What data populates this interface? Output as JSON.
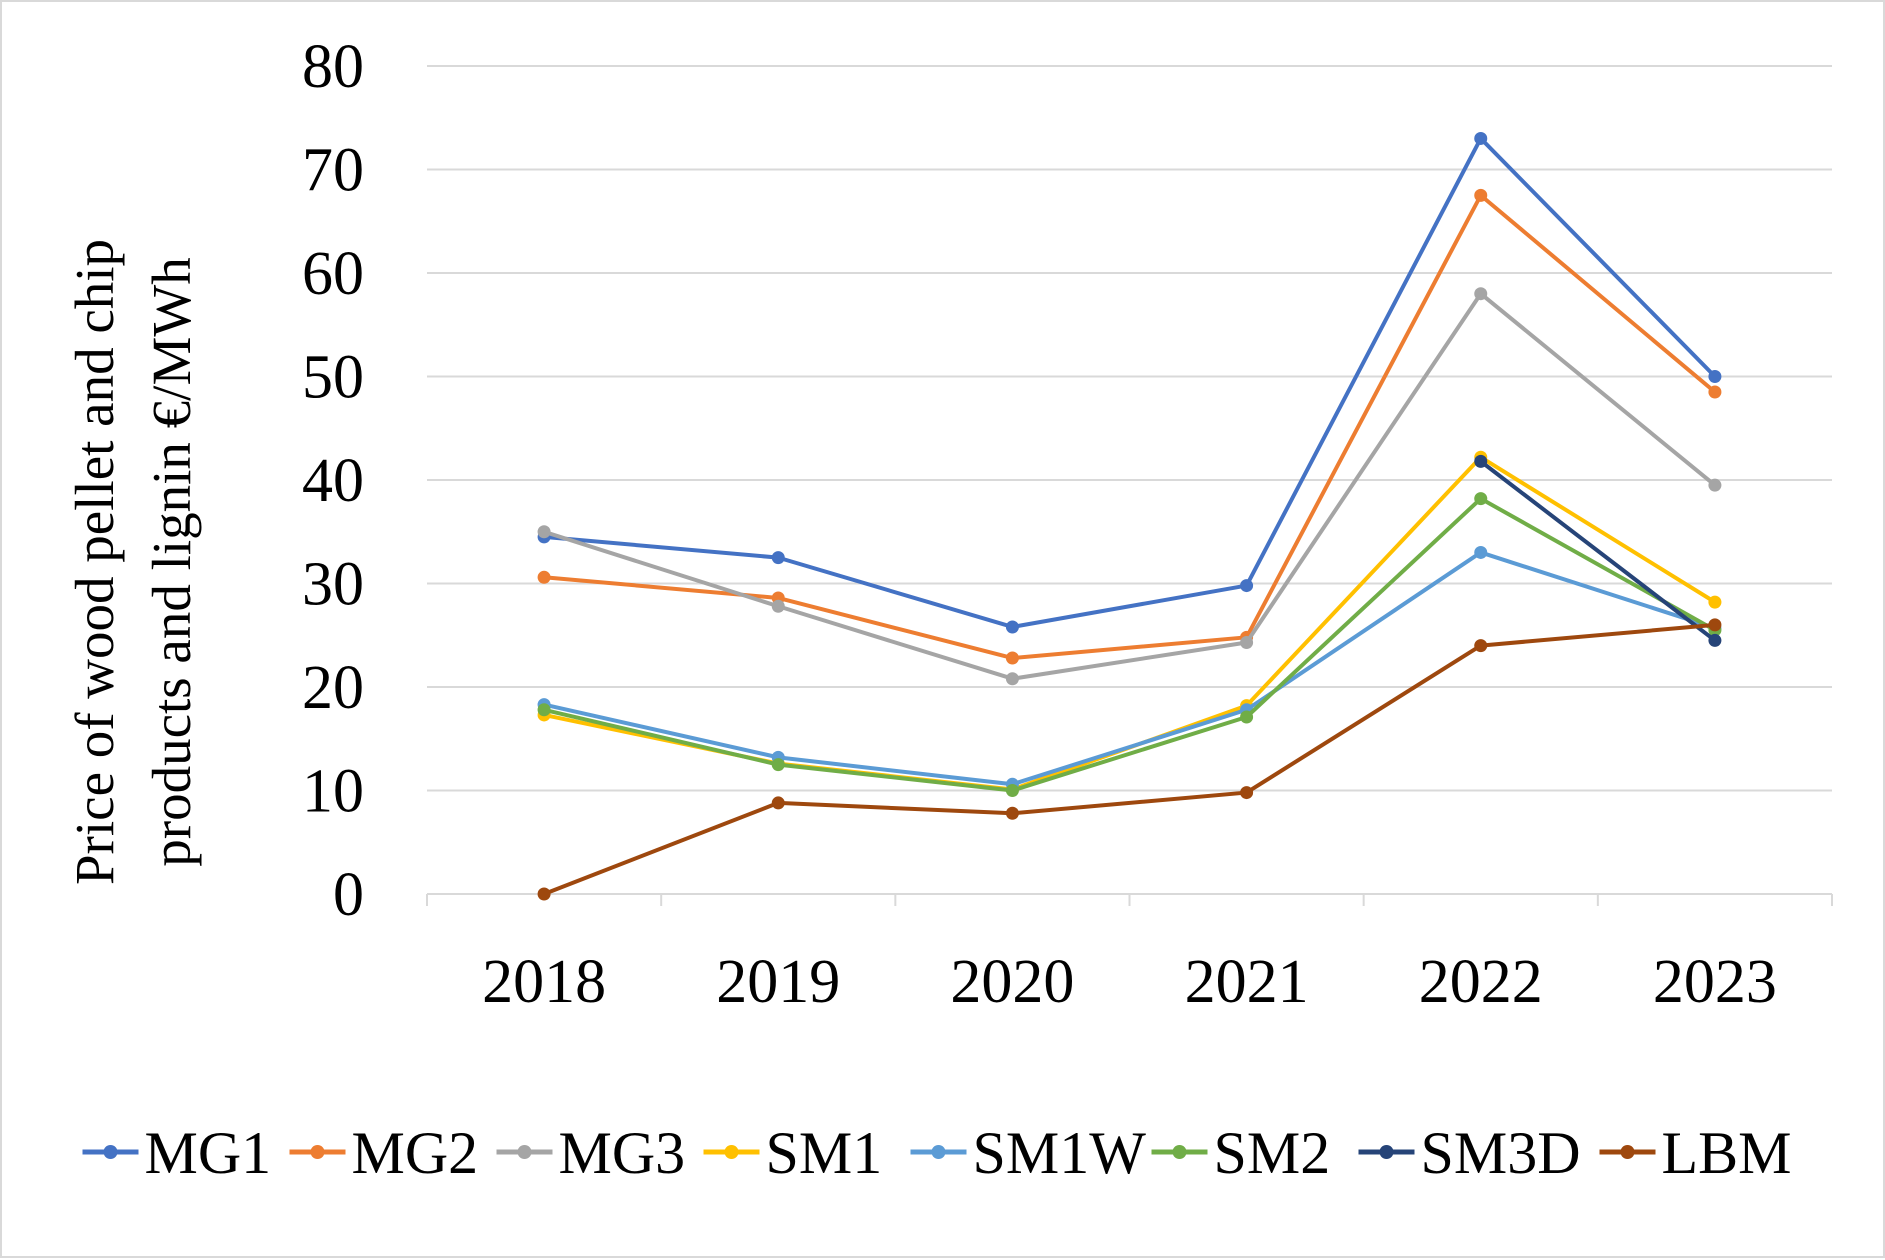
{
  "chart_data": {
    "type": "line",
    "title": "",
    "xlabel": "",
    "ylabel_lines": [
      "Price of wood pellet and chip",
      "products and lignin €/MWh"
    ],
    "categories": [
      "2018",
      "2019",
      "2020",
      "2021",
      "2022",
      "2023"
    ],
    "ylim": [
      0,
      80
    ],
    "yticks": [
      0,
      10,
      20,
      30,
      40,
      50,
      60,
      70,
      80
    ],
    "grid": true,
    "legend_position": "bottom",
    "series": [
      {
        "name": "MG1",
        "color": "#4472C4",
        "values": [
          34.5,
          32.5,
          25.8,
          29.8,
          73.0,
          50.0
        ]
      },
      {
        "name": "MG2",
        "color": "#ED7D31",
        "values": [
          30.6,
          28.6,
          22.8,
          24.8,
          67.5,
          48.5
        ]
      },
      {
        "name": "MG3",
        "color": "#A5A5A5",
        "values": [
          35.0,
          27.8,
          20.8,
          24.3,
          58.0,
          39.5
        ]
      },
      {
        "name": "SM1",
        "color": "#FFC000",
        "values": [
          17.3,
          12.6,
          10.1,
          18.2,
          42.2,
          28.2
        ]
      },
      {
        "name": "SM1W",
        "color": "#5B9BD5",
        "values": [
          18.3,
          13.2,
          10.6,
          17.8,
          33.0,
          25.7
        ]
      },
      {
        "name": "SM2",
        "color": "#70AD47",
        "values": [
          17.8,
          12.5,
          10.0,
          17.1,
          38.2,
          25.5
        ]
      },
      {
        "name": "SM3D",
        "color": "#264478",
        "values": [
          null,
          null,
          null,
          null,
          41.8,
          24.5
        ]
      },
      {
        "name": "LBM",
        "color": "#9E480E",
        "values": [
          0.0,
          8.8,
          7.8,
          9.8,
          24.0,
          26.0
        ]
      }
    ]
  }
}
